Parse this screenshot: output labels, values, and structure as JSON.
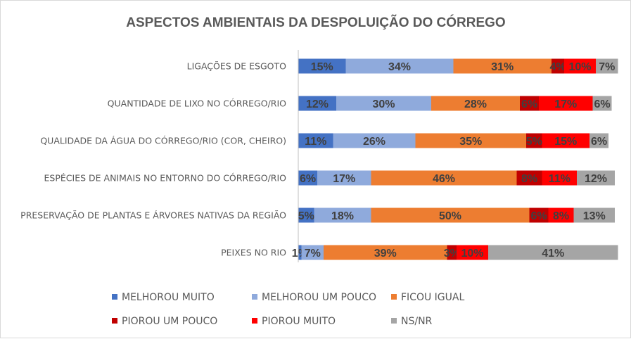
{
  "chart_data": {
    "type": "bar",
    "orientation": "horizontal",
    "stacked": true,
    "percent_stacked": true,
    "title": "ASPECTOS AMBIENTAIS DA DESPOLUIÇÃO DO CÓRREGO",
    "categories": [
      "LIGAÇÕES DE ESGOTO",
      "QUANTIDADE DE LIXO NO CÓRREGO/RIO",
      "QUALIDADE DA ÁGUA DO CÓRREGO/RIO (COR, CHEIRO)",
      "ESPÉCIES DE ANIMAIS NO ENTORNO DO CÓRREGO/RIO",
      "PRESERVAÇÃO DE PLANTAS E ÁRVORES NATIVAS DA REGIÃO",
      "PEIXES NO RIO"
    ],
    "series": [
      {
        "name": "MELHOROU MUITO",
        "color": "#4472c4",
        "values": [
          15,
          12,
          11,
          6,
          5,
          1
        ]
      },
      {
        "name": "MELHOROU UM POUCO",
        "color": "#8faadc",
        "values": [
          34,
          30,
          26,
          17,
          18,
          7
        ]
      },
      {
        "name": "FICOU IGUAL",
        "color": "#ed7d31",
        "values": [
          31,
          28,
          35,
          46,
          50,
          39
        ]
      },
      {
        "name": "PIOROU UM POUCO",
        "color": "#c00000",
        "values": [
          4,
          6,
          5,
          8,
          6,
          3
        ]
      },
      {
        "name": "PIOROU MUITO",
        "color": "#ff0000",
        "values": [
          10,
          17,
          15,
          11,
          8,
          10
        ]
      },
      {
        "name": "NS/NR",
        "color": "#a5a5a5",
        "values": [
          7,
          6,
          6,
          12,
          13,
          41
        ]
      }
    ],
    "value_format": "percent",
    "xlim": [
      0,
      100
    ],
    "gridlines": false,
    "legend_position": "bottom"
  }
}
